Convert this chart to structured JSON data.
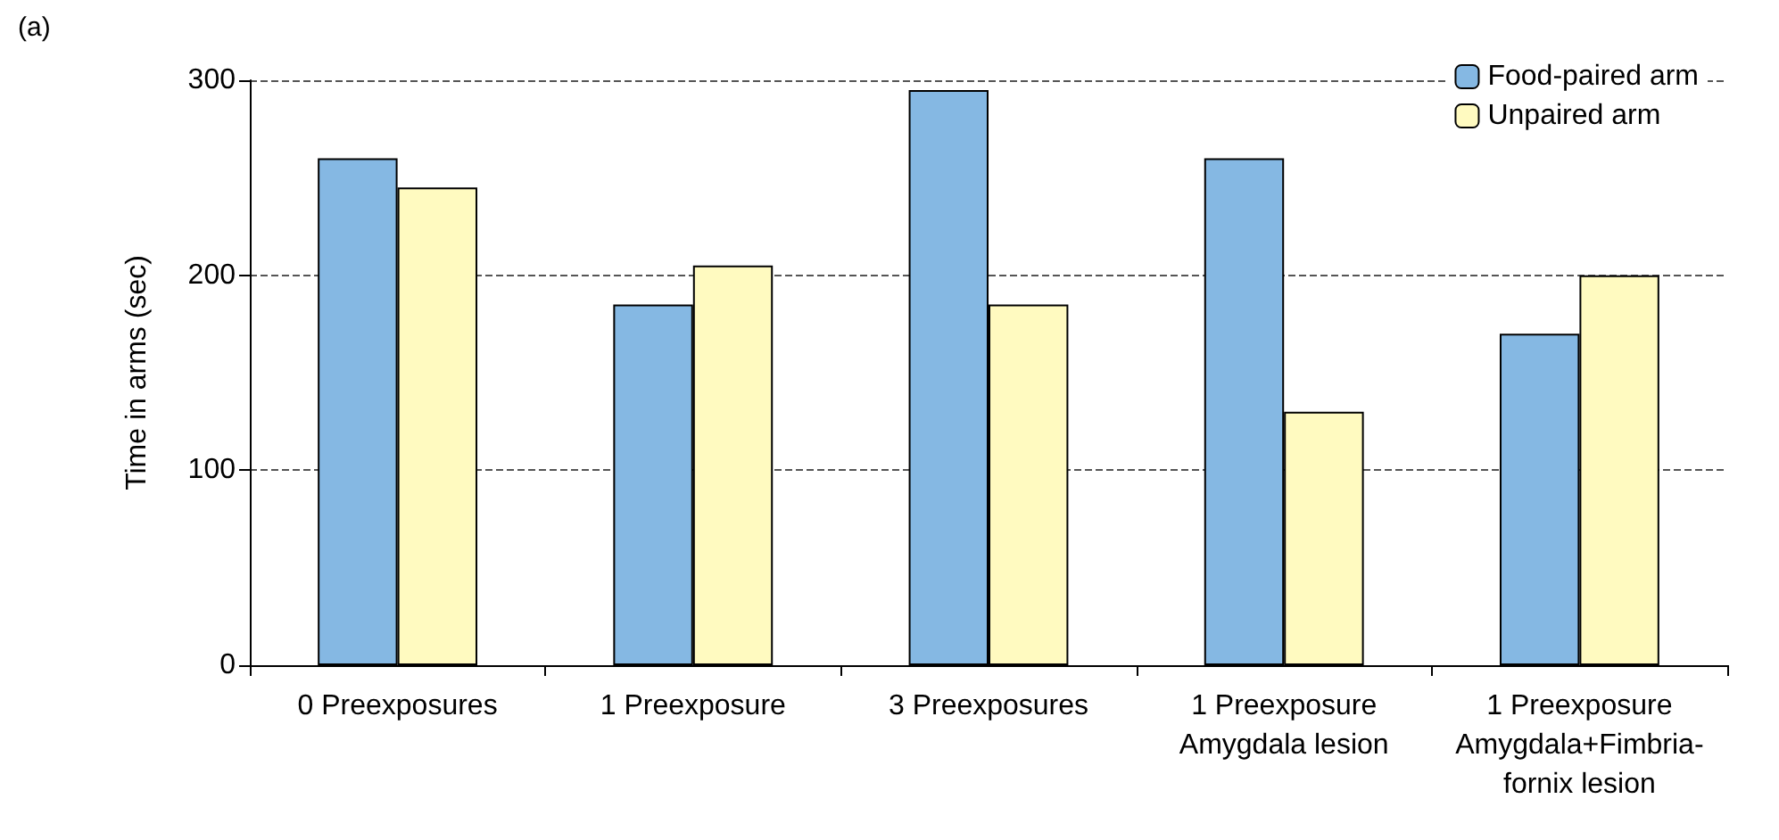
{
  "chart_data": {
    "type": "bar",
    "ylabel": "Time in arms (sec)",
    "categories": [
      "0 Preexposures",
      "1 Preexposure",
      "3 Preexposures",
      "1 Preexposure\nAmygdala lesion",
      "1 Preexposure\nAmygdala+Fimbria-\nfornix lesion"
    ],
    "series": [
      {
        "name": "Food-paired arm",
        "color": "#85b8e3",
        "values": [
          260,
          185,
          295,
          260,
          170
        ]
      },
      {
        "name": "Unpaired arm",
        "color": "#fffac0",
        "values": [
          245,
          205,
          185,
          130,
          200
        ]
      }
    ],
    "ylim": [
      0,
      300
    ],
    "yticks": [
      0,
      100,
      200,
      300
    ],
    "grid": "y",
    "legend": "top right",
    "annotations": [
      "(a)"
    ]
  }
}
